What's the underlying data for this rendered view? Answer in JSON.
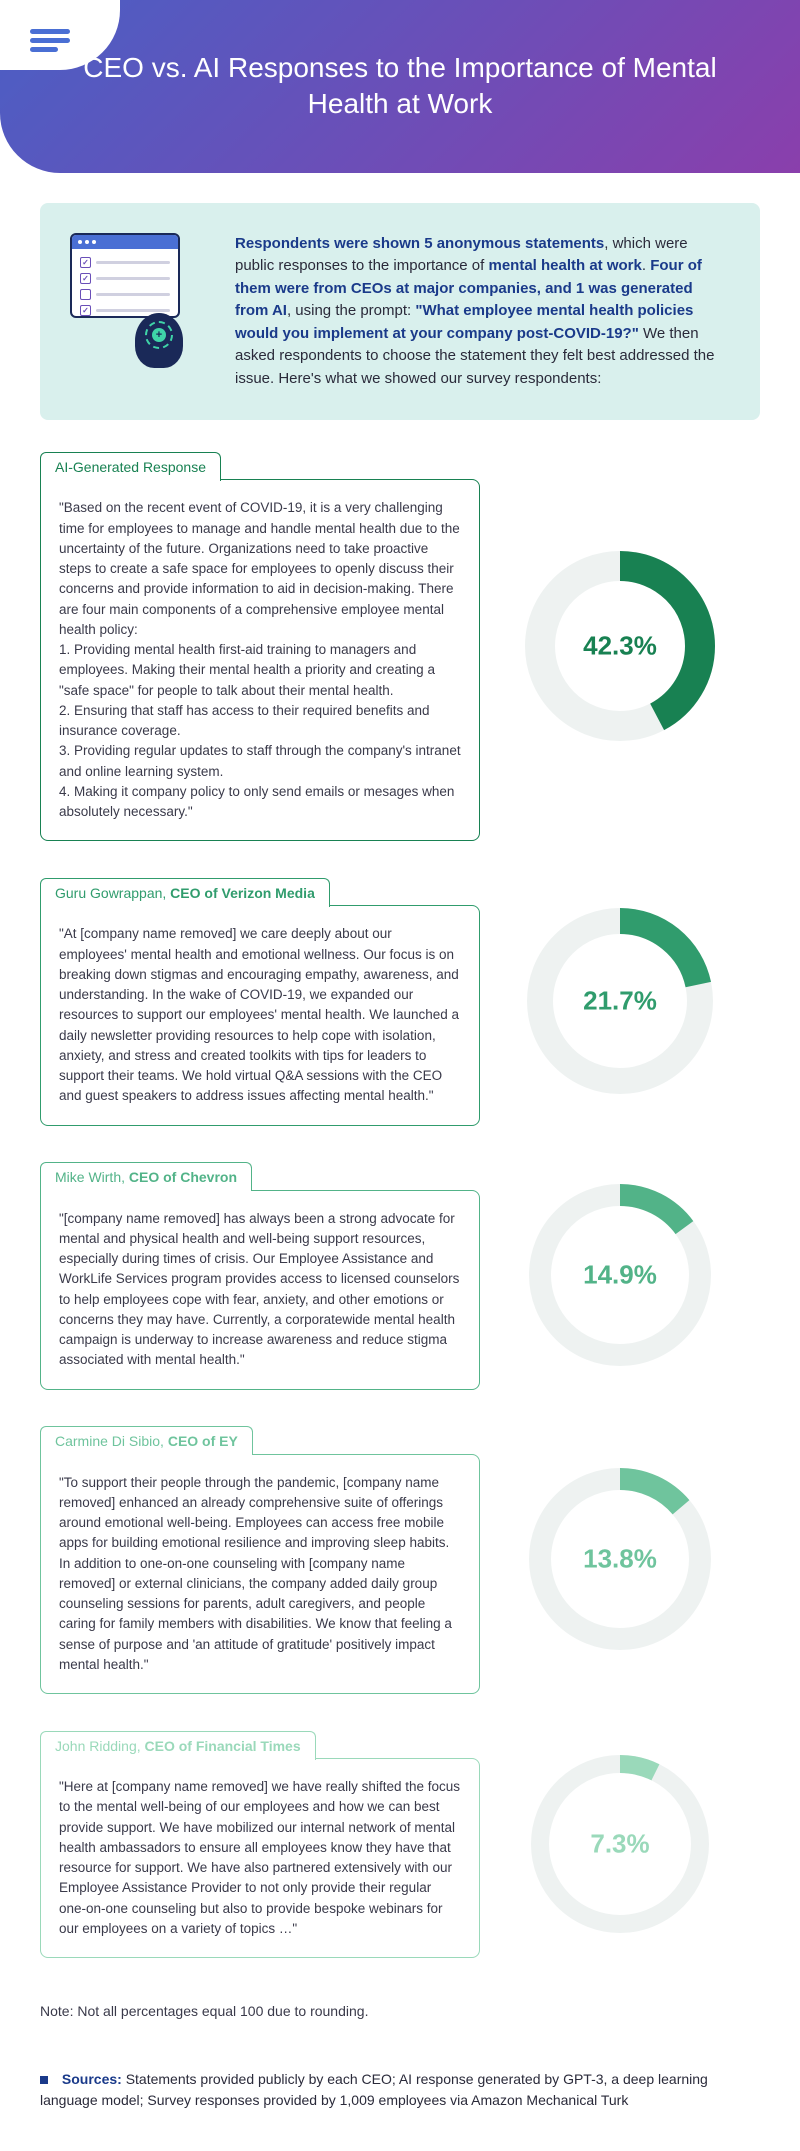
{
  "header": {
    "title": "CEO vs. AI Responses to the Importance of Mental Health at Work"
  },
  "intro": {
    "p1_bold1": "Respondents were shown 5 anonymous statements",
    "p1_text1": ", which were public responses to the importance of ",
    "p1_bold2": "mental health at work",
    "p1_text2": ". ",
    "p1_bold3": "Four of them were from CEOs at major companies, and 1 was generated from AI",
    "p1_text3": ", using the prompt: ",
    "p1_prompt": "\"What employee mental health policies would you implement at your company post-COVID-19?\"",
    "p1_text4": " We then asked respondents to choose the statement they felt best addressed the issue. Here's what we showed our survey respondents:"
  },
  "cards": [
    {
      "label_plain": "AI-Generated Response",
      "label_bold": "",
      "body": "\"Based on the recent event of COVID-19, it is a very challenging time for employees to manage and handle mental health due to the uncertainty of the future. Organizations need to take proactive steps to create a safe space for employees to openly discuss their concerns and provide information to aid in decision-making. There are four main components of a comprehensive employee mental health policy:\n1. Providing mental health first-aid training to managers and employees. Making their mental health a priority and creating a \"safe space\" for people to talk about their mental health.\n2. Ensuring that staff has access to their required benefits and insurance coverage.\n3. Providing regular updates to staff through the company's intranet and online learning system.\n4. Making it company policy to only send emails or mesages when absolutely necessary.\"",
      "pct": 42.3,
      "pct_label": "42.3%",
      "color": "#188152",
      "track": "#eef2f1",
      "thickness": 30
    },
    {
      "label_plain": "Guru Gowrappan, ",
      "label_bold": "CEO of Verizon Media",
      "body": "\"At [company name removed] we care deeply about our employees' mental health and emotional wellness. Our focus is on breaking down stigmas and encouraging empathy, awareness, and understanding. In the wake of COVID-19, we expanded our resources to support our employees' mental health. We launched a daily newsletter providing resources to help cope with isolation, anxiety, and stress and created toolkits with tips for leaders to support their teams. We hold virtual Q&A sessions with the CEO and guest speakers to address issues affecting mental health.\"",
      "pct": 21.7,
      "pct_label": "21.7%",
      "color": "#309c6d",
      "track": "#eef2f1",
      "thickness": 26
    },
    {
      "label_plain": "Mike Wirth, ",
      "label_bold": "CEO of Chevron",
      "body": "\"[company name removed] has always been a strong advocate for mental and physical health and well-being support resources, especially during times of crisis. Our Employee Assistance and WorkLife Services program provides access to licensed counselors to help employees cope with fear, anxiety, and other emotions or concerns they may have. Currently, a corporatewide mental health campaign is underway to increase awareness and reduce stigma associated with mental health.\"",
      "pct": 14.9,
      "pct_label": "14.9%",
      "color": "#52b388",
      "track": "#eef2f1",
      "thickness": 22
    },
    {
      "label_plain": "Carmine Di Sibio, ",
      "label_bold": "CEO of EY",
      "body": "\"To support their people through the pandemic, [company name removed] enhanced an already comprehensive suite of offerings around emotional well-being. Employees can access free mobile apps for building emotional resilience and improving sleep habits. In addition to one-on-one counseling with [company name removed] or external clinicians, the company added daily group counseling sessions for parents, adult caregivers, and people caring for family members with disabilities. We know that feeling a sense of purpose and 'an attitude of gratitude' positively impact mental health.\"",
      "pct": 13.8,
      "pct_label": "13.8%",
      "color": "#6fc49d",
      "track": "#eef2f1",
      "thickness": 22
    },
    {
      "label_plain": "John Ridding, ",
      "label_bold": "CEO of Financial Times",
      "body": "\"Here at [company name removed] we have really shifted the focus to the mental well-being of our employees and how we can best provide support. We have mobilized our internal network of mental health ambassadors to ensure all employees know they have that resource for support. We have also partnered extensively with our Employee Assistance Provider to not only provide their regular one-on-one counseling but also to provide bespoke webinars for our employees on a variety of topics …\"",
      "pct": 7.3,
      "pct_label": "7.3%",
      "color": "#9ad9ba",
      "track": "#eef2f1",
      "thickness": 18
    }
  ],
  "note": "Note: Not all percentages equal 100 due to rounding.",
  "sources_label": "Sources:",
  "sources_text": " Statements provided publicly by each CEO; AI response generated by GPT-3, a deep learning language model; Survey responses provided by 1,009 employees via Amazon Mechanical Turk",
  "chart_config": {
    "size": 220,
    "radius_base": 80
  }
}
